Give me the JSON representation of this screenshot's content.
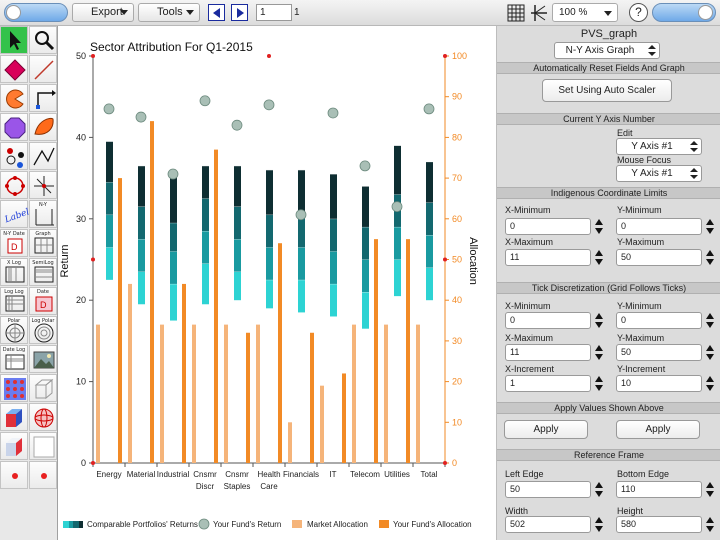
{
  "toolbar": {
    "export_label": "Export",
    "tools_label": "Tools",
    "page_value": "1",
    "page_count": "1",
    "zoom_value": "100 %",
    "help_label": "?"
  },
  "toolbox": {
    "label_tool": "Label",
    "tools": [
      "N-Y",
      "N-Y Date",
      "Graph",
      "X Log",
      "SemiLog",
      "Log Log",
      "Date",
      "Polar",
      "Log Polar",
      "Date Log"
    ]
  },
  "chart_data": {
    "type": "bar",
    "title": "Sector Attribution For Q1-2015",
    "ylabel": "Return",
    "ylabel_right": "Allocation",
    "ylim": [
      0,
      50
    ],
    "ylim_right": [
      0,
      100
    ],
    "yticks": [
      "0",
      "10",
      "20",
      "30",
      "40",
      "50"
    ],
    "yticks_right": [
      "0",
      "10",
      "20",
      "30",
      "40",
      "50",
      "60",
      "70",
      "80",
      "90",
      "100"
    ],
    "categories": [
      "Energy",
      "Material",
      "Industrial",
      "Cnsmr\nDiscr",
      "Cnsmr\nStaples",
      "Health\nCare",
      "Financials",
      "IT",
      "Telecom",
      "Utilities",
      "Total"
    ],
    "series": [
      {
        "name": "Comparable Portfolios' Returns",
        "type": "stacked-range",
        "bands": [
          {
            "low": [
              22.5,
              19.5,
              17.5,
              19.5,
              20,
              19,
              18.5,
              18,
              16.5,
              20.5,
              20
            ],
            "high": [
              26.5,
              23.5,
              22,
              24.5,
              23.5,
              22.5,
              22.5,
              22,
              21,
              25,
              24
            ]
          },
          {
            "low": [
              26.5,
              23.5,
              22,
              24.5,
              23.5,
              22.5,
              22.5,
              22,
              21,
              25,
              24
            ],
            "high": [
              30.5,
              27.5,
              26,
              28.5,
              27.5,
              26.5,
              26.5,
              26,
              25,
              29,
              28
            ]
          },
          {
            "low": [
              30.5,
              27.5,
              26,
              28.5,
              27.5,
              26.5,
              26.5,
              26,
              25,
              29,
              28
            ],
            "high": [
              34.5,
              31.5,
              29.5,
              32.5,
              31.5,
              30.5,
              30.5,
              30,
              29,
              33,
              32
            ]
          },
          {
            "low": [
              34.5,
              31.5,
              29.5,
              32.5,
              31.5,
              30.5,
              30.5,
              30,
              29,
              33,
              32
            ],
            "high": [
              39.5,
              36.5,
              35.5,
              36.5,
              36.5,
              36,
              36,
              35.5,
              34,
              39,
              37
            ]
          }
        ],
        "colors": [
          "#2dd3d3",
          "#199aa0",
          "#13686f",
          "#0e2e32"
        ]
      },
      {
        "name": "Your Fund's Return",
        "type": "marker",
        "values": [
          43.5,
          42.5,
          35.5,
          44.5,
          41.5,
          44,
          30.5,
          43,
          36.5,
          31.5,
          43.5
        ],
        "color": "#a9bfb6"
      },
      {
        "name": "Market Allocation",
        "type": "bar",
        "axis": "right",
        "values": [
          34,
          44,
          34,
          34,
          34,
          34,
          10,
          19,
          34,
          34,
          34
        ],
        "color": "#f5b47a"
      },
      {
        "name": "Your Fund's Allocation",
        "type": "bar",
        "axis": "right",
        "values": [
          70,
          84,
          44,
          77,
          32,
          54,
          32,
          22,
          55,
          55,
          0
        ],
        "color": "#f28a25"
      }
    ],
    "grid": false,
    "legend": "bottom"
  },
  "panel": {
    "title": "PVS_graph",
    "graph_type": "N-Y Axis Graph",
    "sections": {
      "auto_reset": "Automatically Reset Fields And Graph",
      "current_y_axis": "Current Y Axis Number",
      "indigenous_limits": "Indigenous Coordinate Limits",
      "tick_disc": "Tick Discretization (Grid Follows Ticks)",
      "apply_values": "Apply Values Shown Above",
      "reference_frame": "Reference Frame"
    },
    "auto_scaler_label": "Set Using Auto Scaler",
    "edit_label": "Edit",
    "edit_value": "Y Axis #1",
    "mouse_focus_label": "Mouse Focus",
    "mouse_focus_value": "Y Axis #1",
    "limits": {
      "x_min_label": "X-Minimum",
      "x_min": "0",
      "y_min_label": "Y-Minimum",
      "y_min": "0",
      "x_max_label": "X-Maximum",
      "x_max": "11",
      "y_max_label": "Y-Maximum",
      "y_max": "50"
    },
    "ticks": {
      "x_min_label": "X-Minimum",
      "x_min": "0",
      "y_min_label": "Y-Minimum",
      "y_min": "0",
      "x_max_label": "X-Maximum",
      "x_max": "11",
      "y_max_label": "Y-Maximum",
      "y_max": "50",
      "x_inc_label": "X-Increment",
      "x_inc": "1",
      "y_inc_label": "Y-Increment",
      "y_inc": "10"
    },
    "apply_left": "Apply",
    "apply_right": "Apply",
    "frame": {
      "left_edge_label": "Left Edge",
      "left_edge": "50",
      "bottom_edge_label": "Bottom Edge",
      "bottom_edge": "110",
      "width_label": "Width",
      "width": "502",
      "height_label": "Height",
      "height": "580"
    }
  }
}
